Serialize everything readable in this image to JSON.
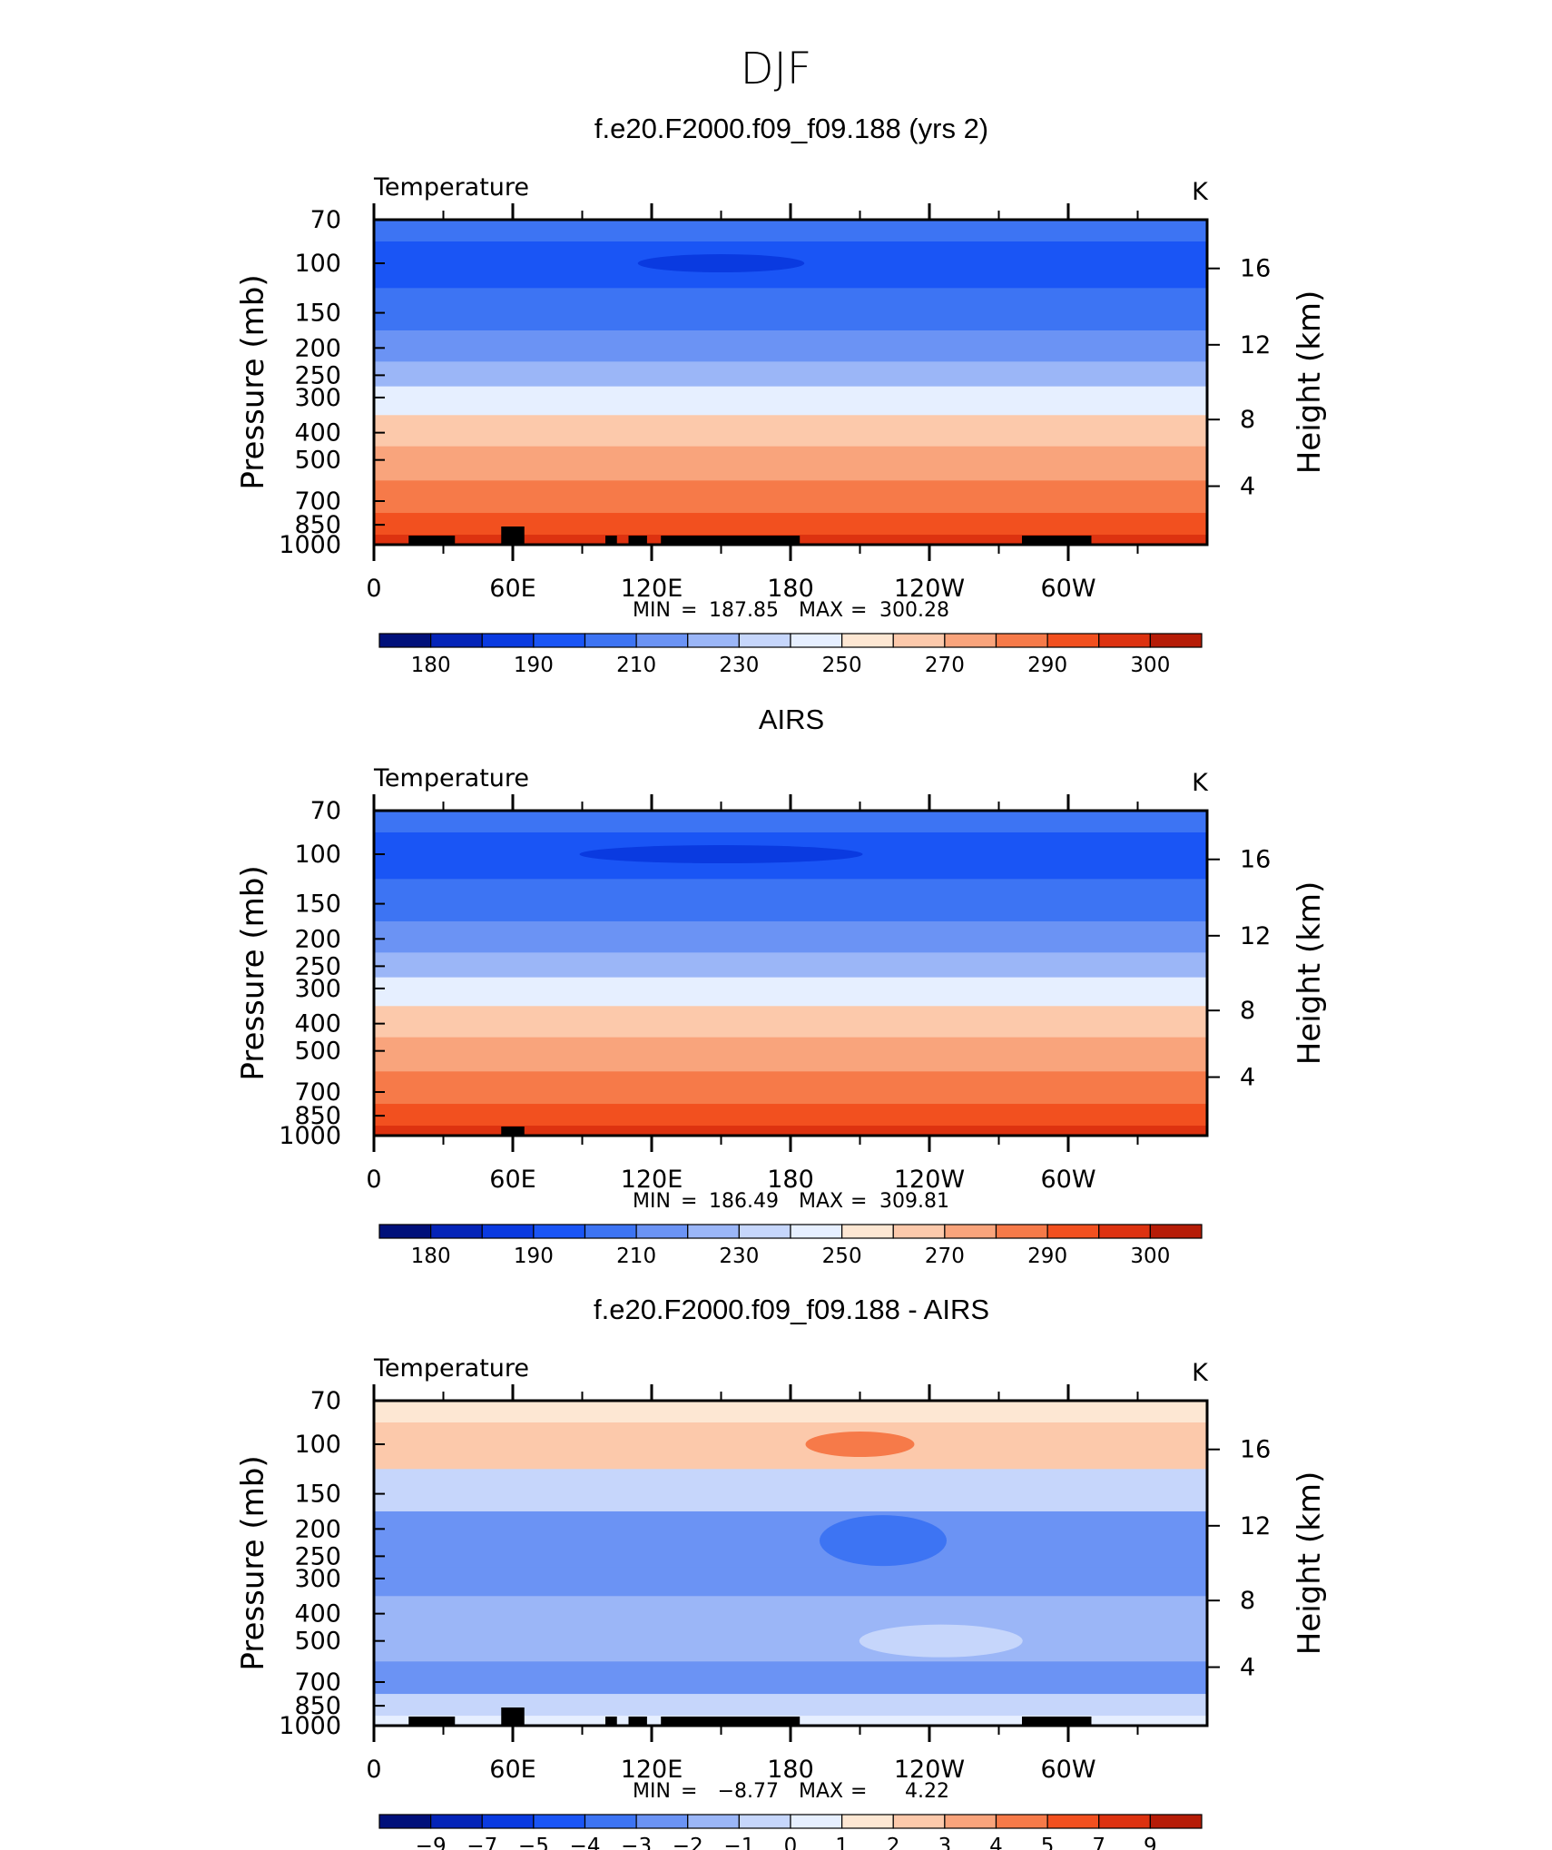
{
  "figure_title": "DJF",
  "colors": {
    "temperature_scale": [
      "#00107a",
      "#0424b8",
      "#0a3ae0",
      "#1a55f5",
      "#3d74f3",
      "#6b93f4",
      "#9bb6f7",
      "#c6d6fb",
      "#e6efff",
      "#fde7d3",
      "#fcc9ab",
      "#f9a47c",
      "#f67a49",
      "#f2501f",
      "#dd3210",
      "#b61c07",
      "#7f0000"
    ]
  },
  "chart_data": [
    {
      "type": "heatmap",
      "title": "f.e20.F2000.f09_f09.188 (yrs 2)",
      "variable": "Temperature",
      "units": "K",
      "ylabel": "Pressure (mb)",
      "ylabel_right": "Height (km)",
      "x_ticklabels": [
        "0",
        "60E",
        "120E",
        "180",
        "120W",
        "60W"
      ],
      "y_ticklabels": [
        "70",
        "100",
        "150",
        "200",
        "250",
        "300",
        "400",
        "500",
        "700",
        "850",
        "1000"
      ],
      "y_right_ticklabels": [
        "16",
        "12",
        "8",
        "4"
      ],
      "stats": {
        "min_label": "MIN",
        "min": "187.85",
        "max_label": "MAX",
        "max": "300.28"
      },
      "colorbar_labels": [
        "180",
        "190",
        "210",
        "230",
        "250",
        "270",
        "290",
        "300"
      ],
      "contour_levels_by_pressure": [
        {
          "pressure": 70,
          "level": 4
        },
        {
          "pressure": 100,
          "level": 3
        },
        {
          "pressure": 150,
          "level": 4
        },
        {
          "pressure": 200,
          "level": 5
        },
        {
          "pressure": 250,
          "level": 6
        },
        {
          "pressure": 300,
          "level": 8
        },
        {
          "pressure": 400,
          "level": 10
        },
        {
          "pressure": 500,
          "level": 11
        },
        {
          "pressure": 700,
          "level": 12
        },
        {
          "pressure": 850,
          "level": 13
        },
        {
          "pressure": 1000,
          "level": 14
        }
      ]
    },
    {
      "type": "heatmap",
      "title": "AIRS",
      "variable": "Temperature",
      "units": "K",
      "ylabel": "Pressure (mb)",
      "ylabel_right": "Height (km)",
      "x_ticklabels": [
        "0",
        "60E",
        "120E",
        "180",
        "120W",
        "60W"
      ],
      "y_ticklabels": [
        "70",
        "100",
        "150",
        "200",
        "250",
        "300",
        "400",
        "500",
        "700",
        "850",
        "1000"
      ],
      "y_right_ticklabels": [
        "16",
        "12",
        "8",
        "4"
      ],
      "stats": {
        "min_label": "MIN",
        "min": "186.49",
        "max_label": "MAX",
        "max": "309.81"
      },
      "colorbar_labels": [
        "180",
        "190",
        "210",
        "230",
        "250",
        "270",
        "290",
        "300"
      ],
      "contour_levels_by_pressure": [
        {
          "pressure": 70,
          "level": 4
        },
        {
          "pressure": 100,
          "level": 3
        },
        {
          "pressure": 150,
          "level": 4
        },
        {
          "pressure": 200,
          "level": 5
        },
        {
          "pressure": 250,
          "level": 6
        },
        {
          "pressure": 300,
          "level": 8
        },
        {
          "pressure": 400,
          "level": 10
        },
        {
          "pressure": 500,
          "level": 11
        },
        {
          "pressure": 700,
          "level": 12
        },
        {
          "pressure": 850,
          "level": 13
        },
        {
          "pressure": 1000,
          "level": 14
        }
      ]
    },
    {
      "type": "heatmap",
      "title": "f.e20.F2000.f09_f09.188 - AIRS",
      "variable": "Temperature",
      "units": "K",
      "ylabel": "Pressure (mb)",
      "ylabel_right": "Height (km)",
      "x_ticklabels": [
        "0",
        "60E",
        "120E",
        "180",
        "120W",
        "60W"
      ],
      "y_ticklabels": [
        "70",
        "100",
        "150",
        "200",
        "250",
        "300",
        "400",
        "500",
        "700",
        "850",
        "1000"
      ],
      "y_right_ticklabels": [
        "16",
        "12",
        "8",
        "4"
      ],
      "stats": {
        "min_label": "MIN",
        "min": "−8.77",
        "max_label": "MAX",
        "max": "4.22"
      },
      "colorbar_labels": [
        "−9",
        "−7",
        "−5",
        "−4",
        "−3",
        "−2",
        "−1",
        "0",
        "1",
        "2",
        "3",
        "4",
        "5",
        "7",
        "9"
      ],
      "contour_levels_by_pressure": [
        {
          "pressure": 70,
          "level": 9
        },
        {
          "pressure": 100,
          "level": 10
        },
        {
          "pressure": 150,
          "level": 7
        },
        {
          "pressure": 200,
          "level": 5
        },
        {
          "pressure": 250,
          "level": 5
        },
        {
          "pressure": 300,
          "level": 5
        },
        {
          "pressure": 400,
          "level": 6
        },
        {
          "pressure": 500,
          "level": 6
        },
        {
          "pressure": 700,
          "level": 5
        },
        {
          "pressure": 850,
          "level": 7
        },
        {
          "pressure": 1000,
          "level": 8
        }
      ]
    }
  ]
}
